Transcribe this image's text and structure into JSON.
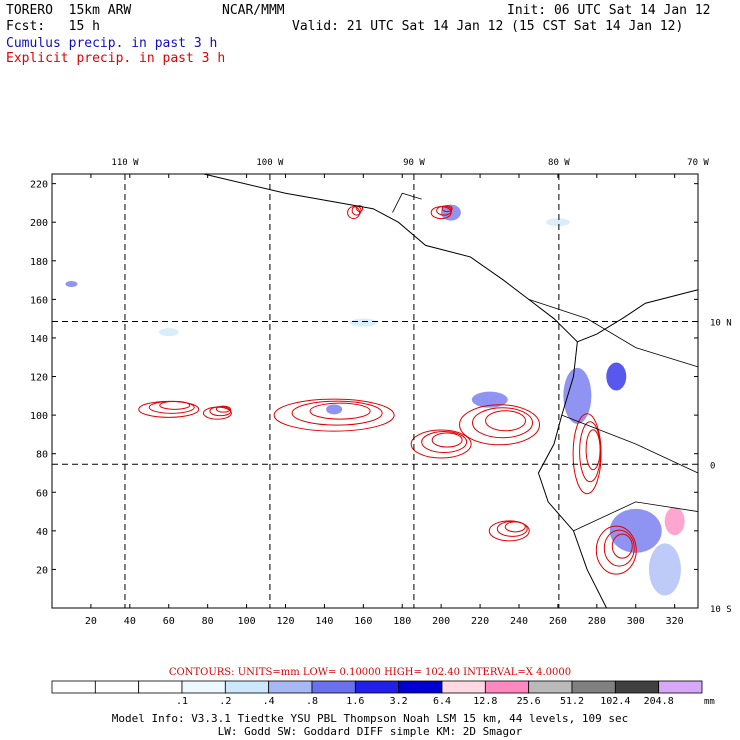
{
  "header": {
    "model": "TORERO  15km ARW",
    "org": "NCAR/MMM",
    "init": "Init: 06 UTC Sat 14 Jan 12",
    "fcst": "Fcst:   15 h",
    "valid": "Valid: 21 UTC Sat 14 Jan 12 (15 CST Sat 14 Jan 12)",
    "legend1": "Cumulus precip. in past 3 h",
    "legend2": "Explicit precip. in past 3 h",
    "legend1_color": "#1010c0",
    "legend2_color": "#e00000"
  },
  "map": {
    "lon_labels": [
      "110 W",
      "100 W",
      "90 W",
      "80 W",
      "70 W"
    ],
    "lat_labels": [
      "10 N",
      "0",
      "10 S"
    ],
    "x_ticks": [
      "20",
      "40",
      "60",
      "80",
      "100",
      "120",
      "140",
      "160",
      "180",
      "200",
      "220",
      "240",
      "260",
      "280",
      "300",
      "320"
    ],
    "y_ticks": [
      "20",
      "40",
      "60",
      "80",
      "100",
      "120",
      "140",
      "160",
      "180",
      "200",
      "220"
    ],
    "x_range": [
      0,
      332
    ],
    "y_range": [
      0,
      225
    ]
  },
  "contours_text": "CONTOURS:  UNITS=mm  LOW= 0.10000      HIGH=  102.40      INTERVAL=X  4.0000",
  "colorbar": {
    "labels": [
      ".1",
      ".2",
      ".4",
      ".8",
      "1.6",
      "3.2",
      "6.4",
      "12.8",
      "25.6",
      "51.2",
      "102.4",
      "204.8"
    ],
    "unit": "mm",
    "colors": [
      "#ffffff",
      "#ffffff",
      "#ffffff",
      "#eef8ff",
      "#cce8fc",
      "#a8b8f4",
      "#6a70ee",
      "#2020e6",
      "#0000d0",
      "#ffd8e4",
      "#ff88c0",
      "#bababa",
      "#808080",
      "#404040",
      "#d8a8f8"
    ]
  },
  "footer": {
    "line1": "Model Info: V3.3.1    Tiedtke YSU PBL  Thompson    Noah LSM  15 km,   44 levels,  109 sec",
    "line2": "LW: Godd SW: Goddard DIFF  simple KM: 2D Smagor"
  }
}
